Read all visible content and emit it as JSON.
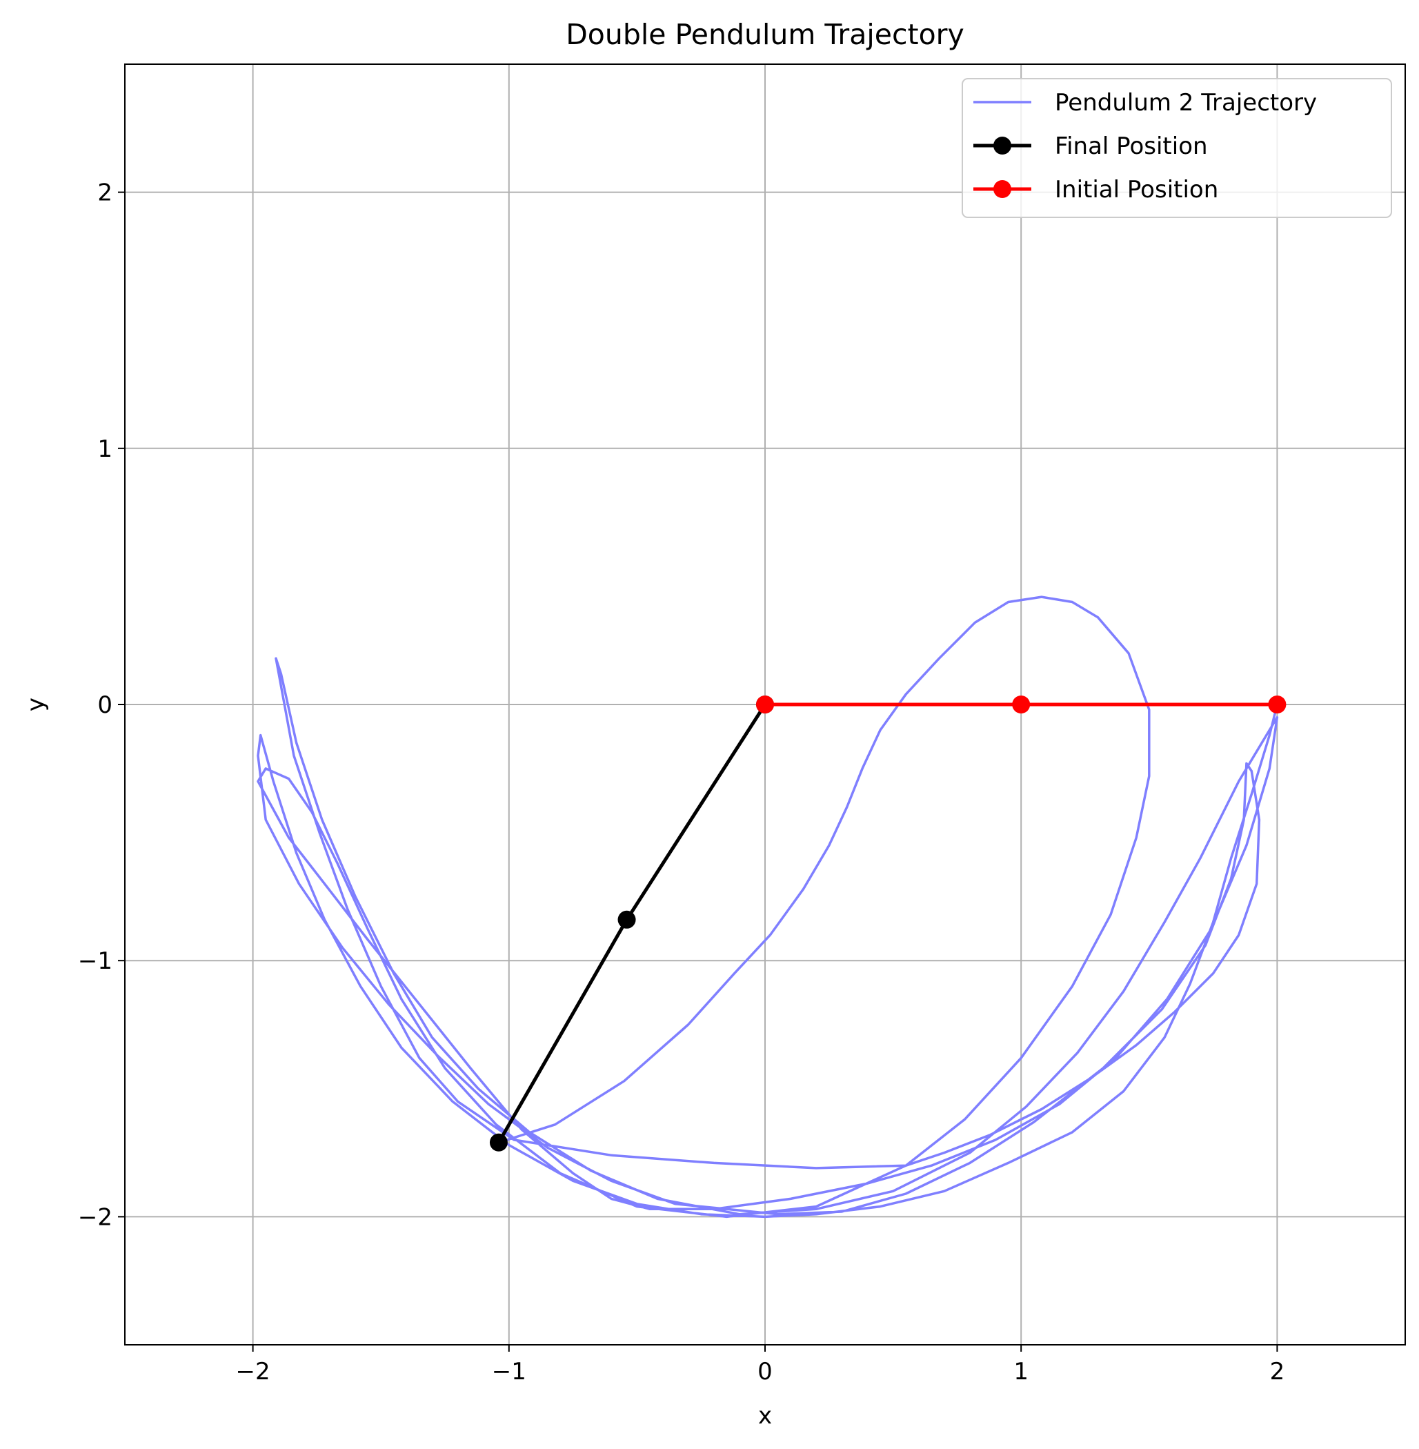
{
  "chart_data": {
    "type": "line",
    "title": "Double Pendulum Trajectory",
    "xlabel": "x",
    "ylabel": "y",
    "xlim": [
      -2.5,
      2.5
    ],
    "ylim": [
      -2.5,
      2.5
    ],
    "xticks": [
      -2,
      -1,
      0,
      1,
      2
    ],
    "xtick_labels": [
      "−2",
      "−1",
      "0",
      "1",
      "2"
    ],
    "yticks": [
      -2,
      -1,
      0,
      1,
      2
    ],
    "ytick_labels": [
      "−2",
      "−1",
      "0",
      "1",
      "2"
    ],
    "grid": true,
    "legend_position": "top-right",
    "series": [
      {
        "name": "Pendulum 2 Trajectory",
        "color": "#7f7fff",
        "marker": "none",
        "points": [
          [
            2.0,
            0.0
          ],
          [
            1.97,
            -0.12
          ],
          [
            1.9,
            -0.35
          ],
          [
            1.82,
            -0.6
          ],
          [
            1.75,
            -0.85
          ],
          [
            1.66,
            -1.09
          ],
          [
            1.56,
            -1.3
          ],
          [
            1.4,
            -1.51
          ],
          [
            1.2,
            -1.67
          ],
          [
            0.95,
            -1.79
          ],
          [
            0.7,
            -1.9
          ],
          [
            0.45,
            -1.96
          ],
          [
            0.2,
            -1.99
          ],
          [
            0.0,
            -2.0
          ],
          [
            -0.25,
            -1.99
          ],
          [
            -0.5,
            -1.95
          ],
          [
            -0.75,
            -1.86
          ],
          [
            -1.0,
            -1.72
          ],
          [
            -1.22,
            -1.55
          ],
          [
            -1.42,
            -1.34
          ],
          [
            -1.58,
            -1.1
          ],
          [
            -1.72,
            -0.84
          ],
          [
            -1.83,
            -0.58
          ],
          [
            -1.92,
            -0.3
          ],
          [
            -1.97,
            -0.12
          ],
          [
            -1.98,
            -0.2
          ],
          [
            -1.95,
            -0.45
          ],
          [
            -1.82,
            -0.7
          ],
          [
            -1.65,
            -0.95
          ],
          [
            -1.47,
            -1.17
          ],
          [
            -1.28,
            -1.37
          ],
          [
            -1.08,
            -1.56
          ],
          [
            -0.85,
            -1.73
          ],
          [
            -0.6,
            -1.86
          ],
          [
            -0.35,
            -1.95
          ],
          [
            -0.2,
            -1.965
          ],
          [
            0.05,
            -1.99
          ],
          [
            0.3,
            -1.98
          ],
          [
            0.55,
            -1.91
          ],
          [
            0.8,
            -1.79
          ],
          [
            1.05,
            -1.63
          ],
          [
            1.32,
            -1.42
          ],
          [
            1.55,
            -1.19
          ],
          [
            1.72,
            -0.94
          ],
          [
            1.82,
            -0.68
          ],
          [
            1.87,
            -0.45
          ],
          [
            1.88,
            -0.23
          ],
          [
            1.9,
            -0.26
          ],
          [
            1.93,
            -0.45
          ],
          [
            1.92,
            -0.7
          ],
          [
            1.85,
            -0.9
          ],
          [
            1.75,
            -1.05
          ],
          [
            1.6,
            -1.2
          ],
          [
            1.45,
            -1.33
          ],
          [
            1.27,
            -1.46
          ],
          [
            1.08,
            -1.58
          ],
          [
            0.88,
            -1.68
          ],
          [
            0.7,
            -1.75
          ],
          [
            0.55,
            -1.8
          ],
          [
            0.2,
            -1.81
          ],
          [
            -0.2,
            -1.79
          ],
          [
            -0.6,
            -1.76
          ],
          [
            -0.98,
            -1.7
          ],
          [
            -1.2,
            -1.55
          ],
          [
            -1.35,
            -1.38
          ],
          [
            -1.5,
            -1.1
          ],
          [
            -1.63,
            -0.8
          ],
          [
            -1.74,
            -0.5
          ],
          [
            -1.84,
            -0.2
          ],
          [
            -1.91,
            0.18
          ],
          [
            -1.89,
            0.12
          ],
          [
            -1.83,
            -0.15
          ],
          [
            -1.73,
            -0.45
          ],
          [
            -1.6,
            -0.75
          ],
          [
            -1.45,
            -1.05
          ],
          [
            -1.3,
            -1.3
          ],
          [
            -1.12,
            -1.5
          ],
          [
            -0.92,
            -1.67
          ],
          [
            -0.68,
            -1.82
          ],
          [
            -0.42,
            -1.93
          ],
          [
            -0.1,
            -1.99
          ],
          [
            0.2,
            -1.97
          ],
          [
            0.5,
            -1.9
          ],
          [
            0.8,
            -1.75
          ],
          [
            1.02,
            -1.57
          ],
          [
            1.22,
            -1.36
          ],
          [
            1.4,
            -1.12
          ],
          [
            1.56,
            -0.85
          ],
          [
            1.7,
            -0.6
          ],
          [
            1.85,
            -0.3
          ],
          [
            1.94,
            -0.15
          ],
          [
            2.0,
            -0.05
          ],
          [
            1.97,
            -0.25
          ],
          [
            1.88,
            -0.55
          ],
          [
            1.74,
            -0.88
          ],
          [
            1.57,
            -1.15
          ],
          [
            1.37,
            -1.38
          ],
          [
            1.15,
            -1.56
          ],
          [
            0.9,
            -1.7
          ],
          [
            0.65,
            -1.8
          ],
          [
            0.4,
            -1.87
          ],
          [
            0.1,
            -1.93
          ],
          [
            -0.2,
            -1.97
          ],
          [
            -0.45,
            -1.97
          ],
          [
            -0.6,
            -1.93
          ],
          [
            -0.75,
            -1.83
          ],
          [
            -0.95,
            -1.66
          ],
          [
            -1.15,
            -1.42
          ],
          [
            -1.35,
            -1.17
          ],
          [
            -1.55,
            -0.92
          ],
          [
            -1.72,
            -0.7
          ],
          [
            -1.86,
            -0.52
          ],
          [
            -1.98,
            -0.3
          ],
          [
            -1.95,
            -0.25
          ],
          [
            -1.86,
            -0.29
          ],
          [
            -1.77,
            -0.42
          ],
          [
            -1.67,
            -0.62
          ],
          [
            -1.55,
            -0.88
          ],
          [
            -1.42,
            -1.15
          ],
          [
            -1.25,
            -1.42
          ],
          [
            -1.05,
            -1.64
          ],
          [
            -0.8,
            -1.83
          ],
          [
            -0.5,
            -1.96
          ],
          [
            -0.15,
            -2.0
          ],
          [
            0.2,
            -1.96
          ],
          [
            0.55,
            -1.8
          ],
          [
            0.78,
            -1.62
          ],
          [
            1.0,
            -1.38
          ],
          [
            1.2,
            -1.1
          ],
          [
            1.35,
            -0.82
          ],
          [
            1.45,
            -0.52
          ],
          [
            1.5,
            -0.28
          ],
          [
            1.5,
            -0.02
          ],
          [
            1.42,
            0.2
          ],
          [
            1.3,
            0.34
          ],
          [
            1.2,
            0.4
          ],
          [
            1.08,
            0.42
          ],
          [
            0.95,
            0.4
          ],
          [
            0.82,
            0.32
          ],
          [
            0.68,
            0.18
          ],
          [
            0.55,
            0.04
          ],
          [
            0.45,
            -0.1
          ],
          [
            0.38,
            -0.25
          ],
          [
            0.32,
            -0.4
          ],
          [
            0.25,
            -0.55
          ],
          [
            0.15,
            -0.72
          ],
          [
            0.02,
            -0.9
          ],
          [
            -0.12,
            -1.05
          ],
          [
            -0.3,
            -1.25
          ],
          [
            -0.55,
            -1.47
          ],
          [
            -0.82,
            -1.64
          ],
          [
            -1.04,
            -1.71
          ]
        ]
      },
      {
        "name": "Final Position",
        "color": "#000000",
        "marker": "circle",
        "points": [
          [
            0.0,
            0.0
          ],
          [
            -0.54,
            -0.84
          ],
          [
            -1.04,
            -1.71
          ]
        ]
      },
      {
        "name": "Initial Position",
        "color": "#ff0000",
        "marker": "circle",
        "points": [
          [
            0.0,
            0.0
          ],
          [
            1.0,
            0.0
          ],
          [
            2.0,
            0.0
          ]
        ]
      }
    ]
  }
}
